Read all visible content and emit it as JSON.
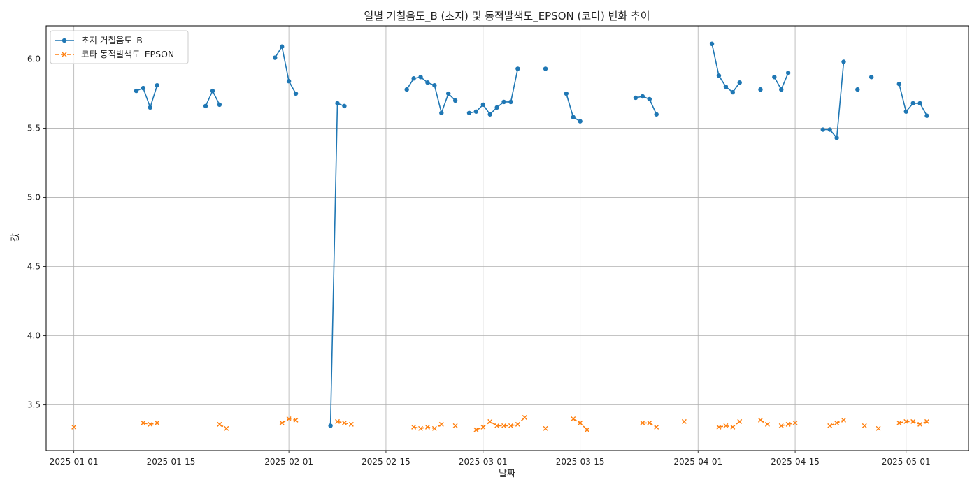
{
  "chart_data": {
    "type": "line",
    "title": "일별 거칠음도_B (초지) 및 동적발색도_EPSON (코타) 변화 추이",
    "xlabel": "날짜",
    "ylabel": "값",
    "xlim": [
      "2024-12-28",
      "2025-05-10"
    ],
    "ylim": [
      3.17,
      6.24
    ],
    "grid": true,
    "legend_position": "top-left",
    "x_ticks": [
      "2025-01-01",
      "2025-01-15",
      "2025-02-01",
      "2025-02-15",
      "2025-03-01",
      "2025-03-15",
      "2025-04-01",
      "2025-04-15",
      "2025-05-01"
    ],
    "y_ticks": [
      3.5,
      4.0,
      4.5,
      5.0,
      5.5,
      6.0
    ],
    "series": [
      {
        "name": "초지 거칠음도_B",
        "color": "#1f77b4",
        "line_style": "solid",
        "marker": "circle",
        "points": [
          [
            "2025-01-10",
            5.77
          ],
          [
            "2025-01-11",
            5.79
          ],
          [
            "2025-01-12",
            5.65
          ],
          [
            "2025-01-13",
            5.81
          ],
          [
            "2025-01-20",
            5.66
          ],
          [
            "2025-01-21",
            5.77
          ],
          [
            "2025-01-22",
            5.67
          ],
          [
            "2025-01-30",
            6.01
          ],
          [
            "2025-01-31",
            6.09
          ],
          [
            "2025-02-01",
            5.84
          ],
          [
            "2025-02-02",
            5.75
          ],
          [
            "2025-02-07",
            3.35
          ],
          [
            "2025-02-08",
            5.68
          ],
          [
            "2025-02-09",
            5.66
          ],
          [
            "2025-02-18",
            5.78
          ],
          [
            "2025-02-19",
            5.86
          ],
          [
            "2025-02-20",
            5.87
          ],
          [
            "2025-02-21",
            5.83
          ],
          [
            "2025-02-22",
            5.81
          ],
          [
            "2025-02-23",
            5.61
          ],
          [
            "2025-02-24",
            5.75
          ],
          [
            "2025-02-25",
            5.7
          ],
          [
            "2025-02-27",
            5.61
          ],
          [
            "2025-02-28",
            5.62
          ],
          [
            "2025-03-01",
            5.67
          ],
          [
            "2025-03-02",
            5.6
          ],
          [
            "2025-03-03",
            5.65
          ],
          [
            "2025-03-04",
            5.69
          ],
          [
            "2025-03-05",
            5.69
          ],
          [
            "2025-03-06",
            5.93
          ],
          [
            "2025-03-10",
            5.93
          ],
          [
            "2025-03-13",
            5.75
          ],
          [
            "2025-03-14",
            5.58
          ],
          [
            "2025-03-15",
            5.55
          ],
          [
            "2025-03-23",
            5.72
          ],
          [
            "2025-03-24",
            5.73
          ],
          [
            "2025-03-25",
            5.71
          ],
          [
            "2025-03-26",
            5.6
          ],
          [
            "2025-04-03",
            6.11
          ],
          [
            "2025-04-04",
            5.88
          ],
          [
            "2025-04-05",
            5.8
          ],
          [
            "2025-04-06",
            5.76
          ],
          [
            "2025-04-07",
            5.83
          ],
          [
            "2025-04-10",
            5.78
          ],
          [
            "2025-04-12",
            5.87
          ],
          [
            "2025-04-13",
            5.78
          ],
          [
            "2025-04-14",
            5.9
          ],
          [
            "2025-04-19",
            5.49
          ],
          [
            "2025-04-20",
            5.49
          ],
          [
            "2025-04-21",
            5.43
          ],
          [
            "2025-04-22",
            5.98
          ],
          [
            "2025-04-24",
            5.78
          ],
          [
            "2025-04-26",
            5.87
          ],
          [
            "2025-04-30",
            5.82
          ],
          [
            "2025-05-01",
            5.62
          ],
          [
            "2025-05-02",
            5.68
          ],
          [
            "2025-05-03",
            5.68
          ],
          [
            "2025-05-04",
            5.59
          ]
        ]
      },
      {
        "name": "코타 동적발색도_EPSON",
        "color": "#ff7f0e",
        "line_style": "dashed",
        "marker": "x",
        "points": [
          [
            "2025-01-01",
            3.34
          ],
          [
            "2025-01-11",
            3.37
          ],
          [
            "2025-01-12",
            3.36
          ],
          [
            "2025-01-13",
            3.37
          ],
          [
            "2025-01-22",
            3.36
          ],
          [
            "2025-01-23",
            3.33
          ],
          [
            "2025-01-31",
            3.37
          ],
          [
            "2025-02-01",
            3.4
          ],
          [
            "2025-02-02",
            3.39
          ],
          [
            "2025-02-08",
            3.38
          ],
          [
            "2025-02-09",
            3.37
          ],
          [
            "2025-02-10",
            3.36
          ],
          [
            "2025-02-19",
            3.34
          ],
          [
            "2025-02-20",
            3.33
          ],
          [
            "2025-02-21",
            3.34
          ],
          [
            "2025-02-22",
            3.33
          ],
          [
            "2025-02-23",
            3.36
          ],
          [
            "2025-02-25",
            3.35
          ],
          [
            "2025-02-28",
            3.32
          ],
          [
            "2025-03-01",
            3.34
          ],
          [
            "2025-03-02",
            3.38
          ],
          [
            "2025-03-03",
            3.35
          ],
          [
            "2025-03-04",
            3.35
          ],
          [
            "2025-03-05",
            3.35
          ],
          [
            "2025-03-06",
            3.36
          ],
          [
            "2025-03-07",
            3.41
          ],
          [
            "2025-03-10",
            3.33
          ],
          [
            "2025-03-14",
            3.4
          ],
          [
            "2025-03-15",
            3.37
          ],
          [
            "2025-03-16",
            3.32
          ],
          [
            "2025-03-24",
            3.37
          ],
          [
            "2025-03-25",
            3.37
          ],
          [
            "2025-03-26",
            3.34
          ],
          [
            "2025-03-30",
            3.38
          ],
          [
            "2025-04-04",
            3.34
          ],
          [
            "2025-04-05",
            3.35
          ],
          [
            "2025-04-06",
            3.34
          ],
          [
            "2025-04-07",
            3.38
          ],
          [
            "2025-04-10",
            3.39
          ],
          [
            "2025-04-11",
            3.36
          ],
          [
            "2025-04-13",
            3.35
          ],
          [
            "2025-04-14",
            3.36
          ],
          [
            "2025-04-15",
            3.37
          ],
          [
            "2025-04-20",
            3.35
          ],
          [
            "2025-04-21",
            3.37
          ],
          [
            "2025-04-22",
            3.39
          ],
          [
            "2025-04-25",
            3.35
          ],
          [
            "2025-04-27",
            3.33
          ],
          [
            "2025-04-30",
            3.37
          ],
          [
            "2025-05-01",
            3.38
          ],
          [
            "2025-05-02",
            3.38
          ],
          [
            "2025-05-03",
            3.36
          ],
          [
            "2025-05-04",
            3.38
          ]
        ]
      }
    ]
  }
}
